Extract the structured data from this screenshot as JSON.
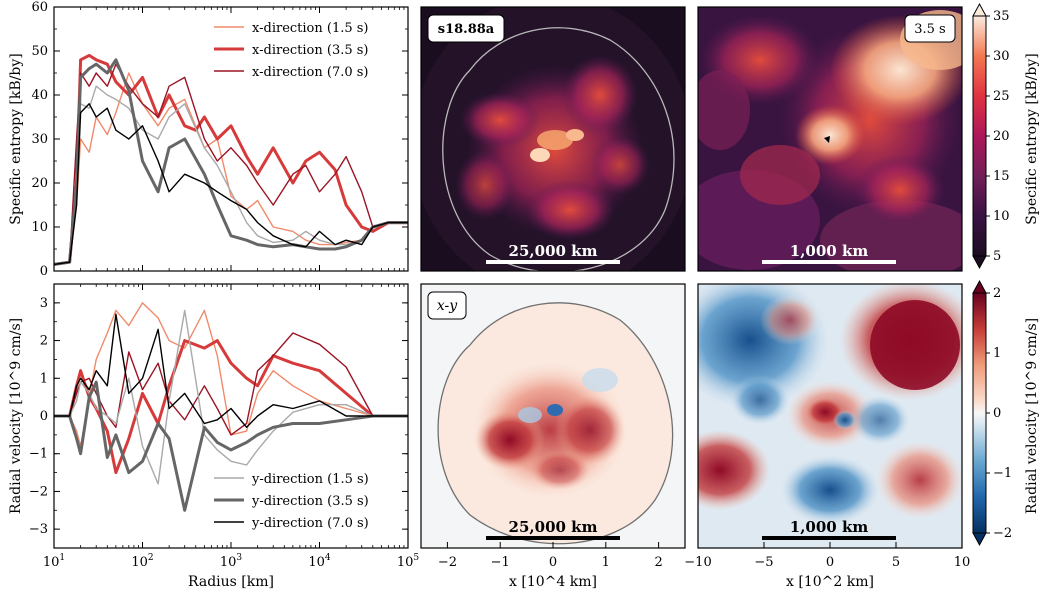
{
  "colors": {
    "x15": "#f08a6a",
    "x35": "#d63a3a",
    "x70": "#9b1424",
    "y15": "#a9a9a9",
    "y35": "#666666",
    "y70": "#000000"
  },
  "chart_data": [
    {
      "type": "line",
      "title": "",
      "xlabel": "Radius [km]",
      "ylabel": "Specific entropy [kB/by]",
      "xscale": "log",
      "xlim": [
        10,
        100000
      ],
      "ylim": [
        0,
        60
      ],
      "xticks": [
        10,
        100,
        1000,
        10000,
        100000
      ],
      "xtick_labels": [
        "10^1",
        "10^2",
        "10^3",
        "10^4",
        "10^5"
      ],
      "yticks": [
        0,
        10,
        20,
        30,
        40,
        50,
        60
      ],
      "legend_position": "top-right",
      "series": [
        {
          "name": "x-direction (1.5 s)",
          "color_key": "x15",
          "width": 1.4,
          "x": [
            10,
            15,
            18,
            20,
            25,
            30,
            40,
            50,
            70,
            100,
            150,
            200,
            300,
            500,
            700,
            1000,
            1500,
            2000,
            3000,
            5000,
            7000,
            10000,
            15000,
            20000,
            30000,
            40000,
            60000,
            100000
          ],
          "y": [
            1.5,
            2,
            15,
            30,
            27,
            35,
            31,
            36,
            45,
            38,
            33,
            37,
            39,
            28,
            30,
            17,
            14,
            16,
            10,
            9,
            7,
            6,
            6,
            6.5,
            7,
            10,
            11,
            11
          ]
        },
        {
          "name": "x-direction (3.5 s)",
          "color_key": "x35",
          "width": 3,
          "x": [
            10,
            15,
            18,
            20,
            25,
            30,
            40,
            50,
            70,
            100,
            150,
            200,
            300,
            400,
            500,
            700,
            1000,
            1500,
            2000,
            3000,
            5000,
            7000,
            10000,
            15000,
            20000,
            30000,
            40000,
            60000,
            100000
          ],
          "y": [
            1.5,
            2,
            20,
            48,
            49,
            48,
            47,
            43,
            40,
            44,
            35,
            40,
            33,
            32,
            35,
            30,
            33,
            26,
            22,
            28,
            20,
            25,
            27,
            23,
            15,
            10,
            9,
            11,
            11
          ]
        },
        {
          "name": "x-direction (7.0 s)",
          "color_key": "x70",
          "width": 1.4,
          "x": [
            10,
            15,
            18,
            20,
            25,
            30,
            40,
            50,
            70,
            100,
            150,
            200,
            300,
            500,
            700,
            1000,
            1500,
            2000,
            3000,
            5000,
            7000,
            10000,
            15000,
            20000,
            30000,
            40000,
            60000,
            100000
          ],
          "y": [
            1.5,
            2,
            30,
            45,
            42,
            45,
            42,
            47,
            42,
            38,
            35,
            42,
            44,
            30,
            25,
            28,
            24,
            20,
            15,
            22,
            24,
            18,
            22,
            26,
            18,
            10,
            11,
            11
          ]
        },
        {
          "name": "y-direction (1.5 s)",
          "color_key": "y15",
          "width": 1.4,
          "x": [
            10,
            15,
            18,
            20,
            25,
            30,
            40,
            50,
            70,
            100,
            150,
            200,
            300,
            500,
            700,
            1000,
            1500,
            2000,
            3000,
            5000,
            7000,
            10000,
            15000,
            20000,
            30000,
            40000,
            60000,
            100000
          ],
          "y": [
            1.5,
            2,
            18,
            38,
            37,
            42,
            40,
            39,
            37,
            32,
            30,
            35,
            38,
            28,
            24,
            18,
            11,
            8,
            6.5,
            7,
            9,
            7,
            6,
            6,
            7,
            10,
            11,
            11
          ]
        },
        {
          "name": "y-direction (3.5 s)",
          "color_key": "y35",
          "width": 3,
          "x": [
            10,
            15,
            18,
            20,
            25,
            30,
            40,
            50,
            70,
            100,
            150,
            200,
            300,
            500,
            700,
            1000,
            1500,
            2000,
            3000,
            5000,
            7000,
            10000,
            15000,
            20000,
            30000,
            40000,
            60000,
            100000
          ],
          "y": [
            1.5,
            2,
            20,
            44,
            46,
            47,
            45,
            48,
            41,
            25,
            18,
            28,
            30,
            22,
            15,
            8,
            7,
            6,
            5.5,
            6,
            5.5,
            5,
            5,
            5.5,
            7,
            10,
            11,
            11
          ]
        },
        {
          "name": "y-direction (7.0 s)",
          "color_key": "y70",
          "width": 1.4,
          "x": [
            10,
            15,
            18,
            20,
            25,
            30,
            40,
            50,
            70,
            100,
            150,
            200,
            300,
            500,
            700,
            1000,
            1500,
            2000,
            3000,
            5000,
            7000,
            10000,
            15000,
            20000,
            30000,
            40000,
            60000,
            100000
          ],
          "y": [
            1.5,
            2,
            15,
            36,
            38,
            35,
            37,
            32,
            30,
            33,
            25,
            18,
            22,
            20,
            18,
            16,
            14,
            11,
            8,
            6,
            5.5,
            9,
            6,
            7,
            6,
            10,
            11,
            11
          ]
        }
      ]
    },
    {
      "type": "line",
      "title": "",
      "xlabel": "Radius [km]",
      "ylabel": "Radial velocity [10^9 cm/s]",
      "xscale": "log",
      "xlim": [
        10,
        100000
      ],
      "ylim": [
        -3.5,
        3.5
      ],
      "yticks": [
        -3,
        -2,
        -1,
        0,
        1,
        2,
        3
      ],
      "legend_position": "bottom-right",
      "series": [
        {
          "name": "x-direction (1.5 s)",
          "color_key": "x15",
          "width": 1.4,
          "x": [
            10,
            15,
            18,
            20,
            25,
            30,
            40,
            50,
            70,
            100,
            150,
            200,
            300,
            500,
            700,
            1000,
            1500,
            2000,
            3000,
            5000,
            10000,
            20000,
            40000,
            100000
          ],
          "y": [
            0,
            0,
            -0.4,
            -0.8,
            0.5,
            1.5,
            2.2,
            2.8,
            2.4,
            3.0,
            2.6,
            2.0,
            1.8,
            2.8,
            1.6,
            -0.5,
            -0.4,
            0.6,
            1.2,
            0.8,
            0.4,
            0.2,
            0,
            0
          ]
        },
        {
          "name": "x-direction (3.5 s)",
          "color_key": "x35",
          "width": 3,
          "x": [
            10,
            15,
            18,
            20,
            25,
            30,
            40,
            50,
            70,
            100,
            150,
            200,
            300,
            500,
            700,
            1000,
            1500,
            2000,
            3000,
            5000,
            10000,
            20000,
            40000,
            100000
          ],
          "y": [
            0,
            0,
            0.8,
            1.2,
            0.5,
            0.2,
            -0.4,
            -1.5,
            -0.6,
            0.6,
            -0.2,
            0.8,
            2.0,
            1.8,
            2.0,
            1.4,
            1.0,
            0.8,
            1.6,
            1.4,
            1.2,
            0.6,
            0,
            0
          ]
        },
        {
          "name": "x-direction (7.0 s)",
          "color_key": "x70",
          "width": 1.4,
          "x": [
            10,
            15,
            18,
            20,
            25,
            30,
            40,
            50,
            70,
            100,
            150,
            200,
            300,
            500,
            700,
            1000,
            1500,
            2000,
            3000,
            5000,
            10000,
            20000,
            40000,
            100000
          ],
          "y": [
            0,
            0,
            0.6,
            0.9,
            1.0,
            0.6,
            0.0,
            -0.3,
            1.7,
            0.7,
            1.4,
            0.4,
            -0.1,
            0.8,
            0.2,
            -0.5,
            -0.2,
            1.2,
            1.6,
            2.2,
            1.9,
            1.3,
            0,
            0
          ]
        },
        {
          "name": "y-direction (1.5 s)",
          "color_key": "y15",
          "width": 1.4,
          "x": [
            10,
            15,
            18,
            20,
            25,
            30,
            40,
            50,
            70,
            100,
            150,
            200,
            300,
            500,
            700,
            1000,
            1500,
            2000,
            3000,
            5000,
            10000,
            20000,
            40000,
            100000
          ],
          "y": [
            0,
            0,
            0.4,
            0.9,
            0.6,
            0.2,
            0.0,
            -0.2,
            1.0,
            -0.8,
            -1.8,
            0.4,
            2.8,
            -0.5,
            -0.9,
            -1.2,
            -1.3,
            -0.9,
            -0.4,
            0.1,
            0.3,
            0.3,
            0,
            0
          ]
        },
        {
          "name": "y-direction (3.5 s)",
          "color_key": "y35",
          "width": 3,
          "x": [
            10,
            15,
            18,
            20,
            25,
            30,
            40,
            50,
            70,
            100,
            150,
            200,
            300,
            500,
            700,
            1000,
            1500,
            2000,
            3000,
            5000,
            10000,
            20000,
            40000,
            100000
          ],
          "y": [
            0,
            0,
            -0.6,
            -1.0,
            0.5,
            0.9,
            -1.1,
            -0.5,
            -1.5,
            -1.2,
            -0.2,
            -0.6,
            -2.5,
            -0.3,
            -0.7,
            -0.9,
            -0.7,
            -0.5,
            -0.3,
            -0.2,
            -0.2,
            -0.1,
            0,
            0
          ]
        },
        {
          "name": "y-direction (7.0 s)",
          "color_key": "y70",
          "width": 1.4,
          "x": [
            10,
            15,
            18,
            20,
            25,
            30,
            40,
            50,
            70,
            100,
            150,
            200,
            300,
            500,
            700,
            1000,
            1500,
            2000,
            3000,
            5000,
            10000,
            20000,
            40000,
            100000
          ],
          "y": [
            0,
            0,
            0.8,
            1.0,
            0.7,
            1.2,
            0.8,
            2.7,
            0.6,
            1.0,
            2.3,
            0.2,
            0.6,
            -0.2,
            -0.1,
            0.2,
            -0.3,
            0.0,
            0.3,
            0.2,
            0.4,
            0.0,
            0,
            0
          ]
        }
      ]
    },
    {
      "type": "heatmap",
      "title": "",
      "badge": "s18.88a",
      "scalebar_label": "25,000 km",
      "quantity": "Specific entropy [kB/by]",
      "colormap": "rocket",
      "vmin": 5,
      "vmax": 35
    },
    {
      "type": "heatmap",
      "title": "",
      "badge": "3.5 s",
      "scalebar_label": "1,000 km",
      "quantity": "Specific entropy [kB/by]",
      "colormap": "rocket",
      "vmin": 5,
      "vmax": 35,
      "colorbar_ticks": [
        5,
        10,
        15,
        20,
        25,
        30,
        35
      ],
      "colorbar_label": "Specific entropy [kB/by]"
    },
    {
      "type": "heatmap",
      "title": "",
      "badge": "x-y",
      "scalebar_label": "25,000 km",
      "quantity": "Radial velocity [10^9 cm/s]",
      "colormap": "RdBu_r",
      "vmin": -2,
      "vmax": 2,
      "xlabel": "x [10^4 km]",
      "xlim": [
        -2.5,
        2.5
      ],
      "xticks": [
        -2,
        -1,
        0,
        1,
        2
      ]
    },
    {
      "type": "heatmap",
      "title": "",
      "scalebar_label": "1,000 km",
      "quantity": "Radial velocity [10^9 cm/s]",
      "colormap": "RdBu_r",
      "vmin": -2,
      "vmax": 2,
      "xlabel": "x [10^2 km]",
      "xlim": [
        -10,
        10
      ],
      "xticks": [
        -10,
        -5,
        0,
        5,
        10
      ],
      "colorbar_ticks": [
        -2,
        -1,
        0,
        1,
        2
      ],
      "colorbar_label": "Radial velocity [10^9 cm/s]"
    }
  ]
}
